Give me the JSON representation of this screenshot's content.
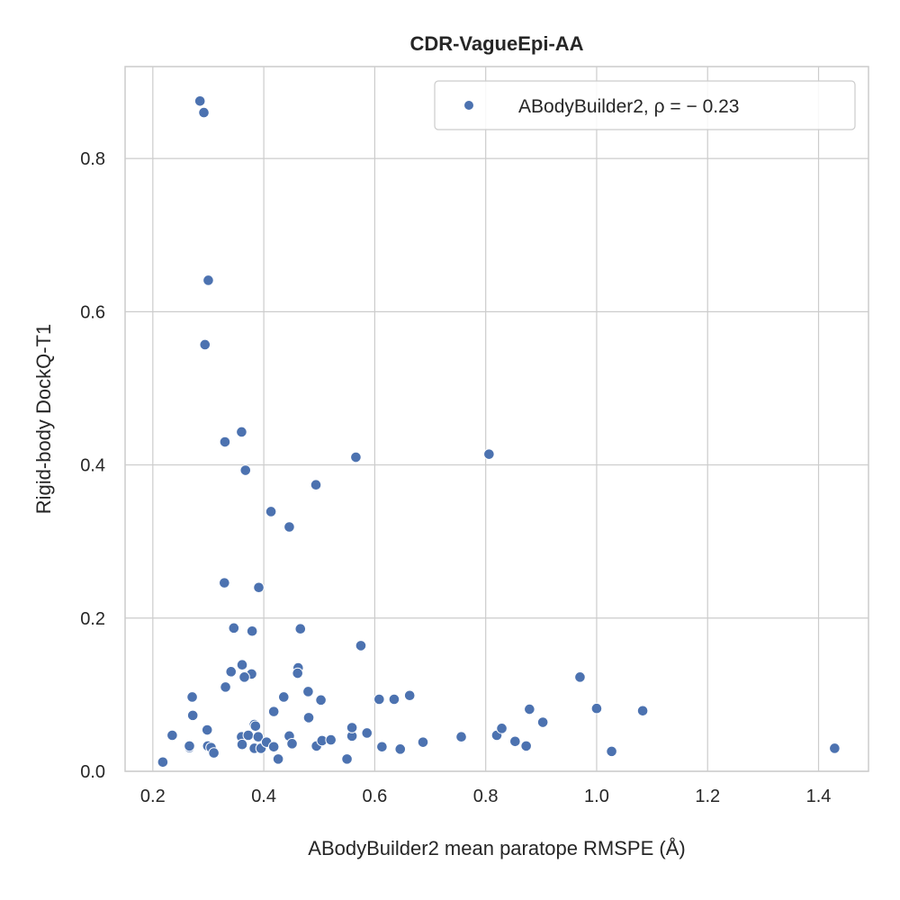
{
  "chart_data": {
    "type": "scatter",
    "title": "CDR-VagueEpi-AA",
    "xlabel": "ABodyBuilder2 mean paratope RMSPE (Å)",
    "ylabel": "Rigid-body DockQ-T1",
    "xlim": [
      0.15,
      1.49
    ],
    "ylim": [
      0.0,
      0.92
    ],
    "xticks": [
      0.2,
      0.4,
      0.6,
      0.8,
      1.0,
      1.2,
      1.4
    ],
    "xtick_labels": [
      "0.2",
      "0.4",
      "0.6",
      "0.8",
      "1.0",
      "1.2",
      "1.4"
    ],
    "yticks": [
      0.0,
      0.2,
      0.4,
      0.6,
      0.8
    ],
    "ytick_labels": [
      "0.0",
      "0.2",
      "0.4",
      "0.6",
      "0.8"
    ],
    "grid": true,
    "legend_position": "top-right",
    "series": [
      {
        "name": "ABodyBuilder2, ρ = − 0.23",
        "color": "#4c72b0",
        "points": [
          [
            0.285,
            0.875
          ],
          [
            0.292,
            0.86
          ],
          [
            0.3,
            0.641
          ],
          [
            0.294,
            0.557
          ],
          [
            0.33,
            0.43
          ],
          [
            0.36,
            0.443
          ],
          [
            0.367,
            0.393
          ],
          [
            0.413,
            0.339
          ],
          [
            0.446,
            0.319
          ],
          [
            0.494,
            0.374
          ],
          [
            0.566,
            0.41
          ],
          [
            0.806,
            0.414
          ],
          [
            0.329,
            0.246
          ],
          [
            0.391,
            0.24
          ],
          [
            0.346,
            0.187
          ],
          [
            0.379,
            0.183
          ],
          [
            0.466,
            0.186
          ],
          [
            0.575,
            0.164
          ],
          [
            0.361,
            0.139
          ],
          [
            0.341,
            0.13
          ],
          [
            0.378,
            0.127
          ],
          [
            0.365,
            0.123
          ],
          [
            0.462,
            0.135
          ],
          [
            0.461,
            0.128
          ],
          [
            0.331,
            0.11
          ],
          [
            0.48,
            0.104
          ],
          [
            0.271,
            0.097
          ],
          [
            0.436,
            0.097
          ],
          [
            0.503,
            0.093
          ],
          [
            0.608,
            0.094
          ],
          [
            0.635,
            0.094
          ],
          [
            0.663,
            0.099
          ],
          [
            0.97,
            0.123
          ],
          [
            1.0,
            0.082
          ],
          [
            1.083,
            0.079
          ],
          [
            0.879,
            0.081
          ],
          [
            0.903,
            0.064
          ],
          [
            0.272,
            0.073
          ],
          [
            0.418,
            0.078
          ],
          [
            0.481,
            0.07
          ],
          [
            0.298,
            0.054
          ],
          [
            0.383,
            0.061
          ],
          [
            0.385,
            0.059
          ],
          [
            0.235,
            0.047
          ],
          [
            0.36,
            0.045
          ],
          [
            0.372,
            0.047
          ],
          [
            0.39,
            0.045
          ],
          [
            0.446,
            0.046
          ],
          [
            0.559,
            0.046
          ],
          [
            0.559,
            0.057
          ],
          [
            0.586,
            0.05
          ],
          [
            0.756,
            0.045
          ],
          [
            0.82,
            0.047
          ],
          [
            0.829,
            0.056
          ],
          [
            0.853,
            0.039
          ],
          [
            0.266,
            0.031
          ],
          [
            0.266,
            0.033
          ],
          [
            0.299,
            0.033
          ],
          [
            0.305,
            0.031
          ],
          [
            0.31,
            0.024
          ],
          [
            0.361,
            0.035
          ],
          [
            0.383,
            0.03
          ],
          [
            0.395,
            0.03
          ],
          [
            0.405,
            0.038
          ],
          [
            0.418,
            0.032
          ],
          [
            0.426,
            0.016
          ],
          [
            0.451,
            0.036
          ],
          [
            0.495,
            0.033
          ],
          [
            0.505,
            0.04
          ],
          [
            0.521,
            0.041
          ],
          [
            0.55,
            0.016
          ],
          [
            0.613,
            0.032
          ],
          [
            0.646,
            0.029
          ],
          [
            0.687,
            0.038
          ],
          [
            0.873,
            0.033
          ],
          [
            1.027,
            0.026
          ],
          [
            1.429,
            0.03
          ],
          [
            0.218,
            0.012
          ]
        ]
      }
    ]
  }
}
